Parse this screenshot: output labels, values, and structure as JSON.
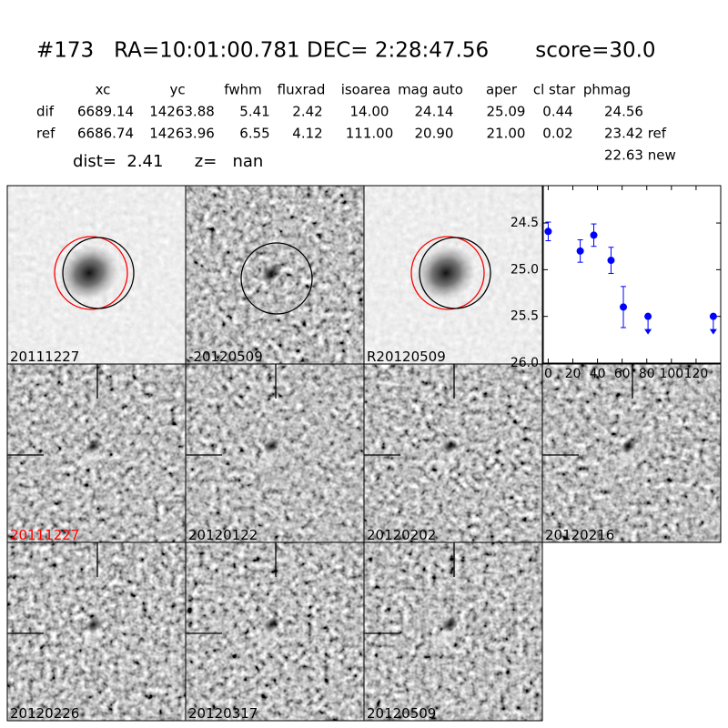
{
  "header": {
    "title": "#173   RA=10:01:00.781 DEC= 2:28:47.56       score=30.0"
  },
  "table": {
    "columns": [
      "xc",
      "yc",
      "fwhm",
      "fluxrad",
      "isoarea",
      "mag auto",
      "aper",
      "cl star",
      "phmag"
    ],
    "rows": [
      {
        "label": "dif",
        "cells": [
          "6689.14",
          "14263.88",
          "5.41",
          "2.42",
          "14.00",
          "24.14",
          "25.09",
          "0.44",
          "24.56"
        ]
      },
      {
        "label": "ref",
        "cells": [
          "6686.74",
          "14263.96",
          "6.55",
          "4.12",
          "111.00",
          "20.90",
          "21.00",
          "0.02",
          "23.42 ref"
        ]
      }
    ],
    "note": "22.63 new"
  },
  "info": "dist=  2.41      z=   nan",
  "stamps": [
    {
      "label": "20111227"
    },
    {
      "label": "-20120509"
    },
    {
      "label": "R20120509"
    },
    {
      "label": "20111227",
      "label_color": "#ff0000"
    },
    {
      "label": "20120122"
    },
    {
      "label": "20120202"
    },
    {
      "label": "20120216"
    },
    {
      "label": "20120226"
    },
    {
      "label": "20120317"
    },
    {
      "label": "20120509"
    }
  ],
  "chart_data": {
    "type": "scatter",
    "x": [
      0,
      26,
      37,
      51,
      61,
      81,
      134
    ],
    "values": [
      24.59,
      24.8,
      24.63,
      24.9,
      25.4,
      25.5,
      25.5
    ],
    "errors": [
      0.1,
      0.12,
      0.12,
      0.14,
      0.22,
      null,
      null
    ],
    "upper_limits": [
      false,
      false,
      false,
      false,
      false,
      true,
      true
    ],
    "color": "#0000ff",
    "xlim": [
      -4,
      140
    ],
    "xticks": [
      0,
      20,
      40,
      60,
      80,
      100,
      120
    ],
    "ylim": [
      24.1,
      26.0
    ],
    "invert_y": true,
    "yticks": [
      24.5,
      {
        "value": 25,
        "label": "25.0"
      },
      25.5,
      {
        "value": 26,
        "label": "26.0"
      }
    ]
  }
}
